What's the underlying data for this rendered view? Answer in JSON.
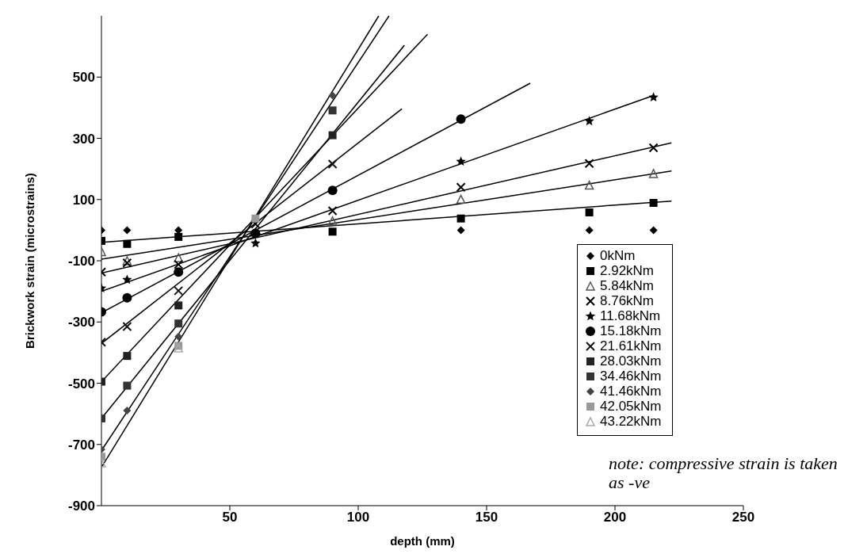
{
  "chart_data": {
    "type": "scatter",
    "xlabel": "depth (mm)",
    "ylabel": "Brickwork strain (microstrains)",
    "xlim": [
      0,
      250
    ],
    "xticks": [
      50,
      100,
      150,
      200,
      250
    ],
    "ylim": [
      -900,
      700
    ],
    "yticks": [
      -900,
      -700,
      -500,
      -300,
      -100,
      100,
      300,
      500
    ],
    "legend": "bottom right",
    "line_style": "solid",
    "annotations": [
      "note: compressive strain is taken as -ve"
    ],
    "series": [
      {
        "name": "0kNm",
        "marker": "diamond",
        "color": "#000000",
        "x": [
          0,
          10,
          30,
          140,
          190,
          215
        ],
        "values": [
          0,
          0,
          0,
          0,
          0,
          0
        ]
      },
      {
        "name": "2.92kNm",
        "marker": "square",
        "color": "#000000",
        "x": [
          0,
          10,
          30,
          60,
          90,
          140,
          190,
          215
        ],
        "values": [
          -35,
          -45,
          -22,
          null,
          -5,
          38,
          58,
          89
        ]
      },
      {
        "name": "5.84kNm",
        "marker": "triangle",
        "color": "#555555",
        "x": [
          0,
          10,
          30,
          60,
          90,
          140,
          190,
          215
        ],
        "values": [
          -70,
          -100,
          -90,
          null,
          30,
          101,
          147,
          185
        ]
      },
      {
        "name": "8.76kNm",
        "marker": "cross",
        "color": "#000000",
        "x": [
          0,
          10,
          30,
          60,
          90,
          140,
          190,
          215
        ],
        "values": [
          -137,
          -107,
          -112,
          20,
          63,
          140,
          218,
          269
        ]
      },
      {
        "name": "11.68kNm",
        "marker": "star",
        "color": "#000000",
        "x": [
          0,
          10,
          60,
          140,
          190,
          215
        ],
        "values": [
          -190,
          -162,
          -43,
          224,
          356,
          434
        ]
      },
      {
        "name": "15.18kNm",
        "marker": "circle",
        "color": "#000000",
        "x": [
          0,
          10,
          30,
          60,
          90,
          140
        ],
        "values": [
          -267,
          -221,
          -137,
          -10,
          130,
          363
        ]
      },
      {
        "name": "21.61kNm",
        "marker": "cross",
        "color": "#111111",
        "x": [
          0,
          10,
          30,
          90
        ],
        "values": [
          -366,
          -315,
          -198,
          216
        ]
      },
      {
        "name": "28.03kNm",
        "marker": "square",
        "color": "#222222",
        "x": [
          0,
          10,
          30,
          90
        ],
        "values": [
          -495,
          -411,
          -246,
          310
        ]
      },
      {
        "name": "34.46kNm",
        "marker": "square",
        "color": "#333333",
        "x": [
          0,
          10,
          30,
          90
        ],
        "values": [
          -615,
          -508,
          -305,
          391
        ]
      },
      {
        "name": "41.46kNm",
        "marker": "diamond",
        "color": "#444444",
        "x": [
          0,
          10,
          30,
          90
        ],
        "values": [
          -716,
          -589,
          -348,
          440
        ]
      },
      {
        "name": "42.05kNm",
        "marker": "square",
        "color": "#999999",
        "x": [
          0,
          30,
          60
        ],
        "values": [
          -740,
          -378,
          38
        ]
      },
      {
        "name": "43.22kNm",
        "marker": "triangle",
        "color": "#aaaaaa",
        "x": [
          0,
          30
        ],
        "values": [
          -760,
          -385
        ]
      },
      {
        "type": "line",
        "color": "#000000",
        "x": [
          0,
          222
        ],
        "values": [
          -40,
          95
        ]
      },
      {
        "type": "line",
        "color": "#000000",
        "x": [
          0,
          222
        ],
        "values": [
          -95,
          193
        ]
      },
      {
        "type": "line",
        "color": "#000000",
        "x": [
          0,
          222
        ],
        "values": [
          -140,
          285
        ]
      },
      {
        "type": "line",
        "color": "#000000",
        "x": [
          0,
          215
        ],
        "values": [
          -200,
          440
        ]
      },
      {
        "type": "line",
        "color": "#000000",
        "x": [
          0,
          167
        ],
        "values": [
          -270,
          480
        ]
      },
      {
        "type": "line",
        "color": "#000000",
        "x": [
          0,
          117
        ],
        "values": [
          -370,
          396
        ]
      },
      {
        "type": "line",
        "color": "#000000",
        "x": [
          0,
          127
        ],
        "values": [
          -495,
          640
        ]
      },
      {
        "type": "line",
        "color": "#000000",
        "x": [
          0,
          118
        ],
        "values": [
          -615,
          604
        ]
      },
      {
        "type": "line",
        "color": "#000000",
        "x": [
          0,
          112
        ],
        "values": [
          -720,
          700
        ]
      },
      {
        "type": "line",
        "color": "#000000",
        "x": [
          0,
          108
        ],
        "values": [
          -775,
          700
        ]
      }
    ]
  }
}
